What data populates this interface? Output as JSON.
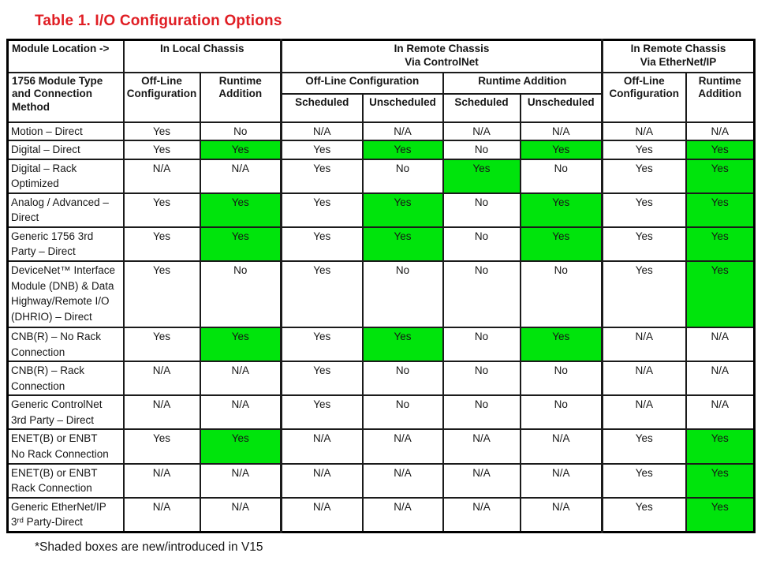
{
  "page": {
    "title": "Table 1. I/O Configuration Options",
    "footnote": "*Shaded boxes are new/introduced in V15"
  },
  "colors": {
    "title_red": "#e01e24",
    "highlight_green": "#00e40c",
    "border_black": "#1b1b1b"
  },
  "table": {
    "corner": {
      "top": "Module Location ->",
      "bottom": "1756 Module Type\nand Connection\nMethod"
    },
    "groups": {
      "local": {
        "label": "In Local Chassis",
        "col_offline": "Off-Line\nConfiguration",
        "col_runtime": "Runtime\nAddition"
      },
      "controlnet": {
        "label": "In Remote Chassis\nVia ControlNet",
        "sub_offline": "Off-Line Configuration",
        "sub_runtime": "Runtime  Addition",
        "sched": "Scheduled",
        "unsched": "Unscheduled"
      },
      "ethernet": {
        "label": "In Remote Chassis\nVia EtherNet/IP",
        "col_offline": "Off-Line\nConfiguration",
        "col_runtime": "Runtime\nAddition"
      }
    },
    "rows": [
      {
        "label": "Motion – Direct",
        "cells": [
          {
            "v": "Yes"
          },
          {
            "v": "No"
          },
          {
            "v": "N/A"
          },
          {
            "v": "N/A"
          },
          {
            "v": "N/A"
          },
          {
            "v": "N/A"
          },
          {
            "v": "N/A"
          },
          {
            "v": "N/A"
          }
        ]
      },
      {
        "label": "Digital – Direct",
        "cells": [
          {
            "v": "Yes"
          },
          {
            "v": "Yes",
            "hl": true
          },
          {
            "v": "Yes"
          },
          {
            "v": "Yes",
            "hl": true
          },
          {
            "v": "No"
          },
          {
            "v": "Yes",
            "hl": true
          },
          {
            "v": "Yes"
          },
          {
            "v": "Yes",
            "hl": true
          }
        ]
      },
      {
        "label": "Digital – Rack\nOptimized",
        "cells": [
          {
            "v": "N/A"
          },
          {
            "v": "N/A"
          },
          {
            "v": "Yes"
          },
          {
            "v": "No"
          },
          {
            "v": "Yes",
            "hl": true
          },
          {
            "v": "No"
          },
          {
            "v": "Yes"
          },
          {
            "v": "Yes",
            "hl": true
          }
        ]
      },
      {
        "label": "Analog / Advanced –\nDirect",
        "cells": [
          {
            "v": "Yes"
          },
          {
            "v": "Yes",
            "hl": true
          },
          {
            "v": "Yes"
          },
          {
            "v": "Yes",
            "hl": true
          },
          {
            "v": "No"
          },
          {
            "v": "Yes",
            "hl": true
          },
          {
            "v": "Yes"
          },
          {
            "v": "Yes",
            "hl": true
          }
        ]
      },
      {
        "label": "Generic 1756 3rd\nParty – Direct",
        "cells": [
          {
            "v": "Yes"
          },
          {
            "v": "Yes",
            "hl": true
          },
          {
            "v": "Yes"
          },
          {
            "v": "Yes",
            "hl": true
          },
          {
            "v": "No"
          },
          {
            "v": "Yes",
            "hl": true
          },
          {
            "v": "Yes"
          },
          {
            "v": "Yes",
            "hl": true
          }
        ]
      },
      {
        "label": "DeviceNet™ Interface\nModule (DNB) & Data\nHighway/Remote I/O\n(DHRIO) – Direct",
        "cells": [
          {
            "v": "Yes"
          },
          {
            "v": "No"
          },
          {
            "v": "Yes"
          },
          {
            "v": "No"
          },
          {
            "v": "No"
          },
          {
            "v": "No"
          },
          {
            "v": "Yes"
          },
          {
            "v": "Yes",
            "hl": true
          }
        ]
      },
      {
        "label": "CNB(R) – No Rack\nConnection",
        "cells": [
          {
            "v": "Yes"
          },
          {
            "v": "Yes",
            "hl": true
          },
          {
            "v": "Yes"
          },
          {
            "v": "Yes",
            "hl": true
          },
          {
            "v": "No"
          },
          {
            "v": "Yes",
            "hl": true
          },
          {
            "v": "N/A"
          },
          {
            "v": "N/A"
          }
        ]
      },
      {
        "label": "CNB(R) – Rack\nConnection",
        "cells": [
          {
            "v": "N/A"
          },
          {
            "v": "N/A"
          },
          {
            "v": "Yes"
          },
          {
            "v": "No"
          },
          {
            "v": "No"
          },
          {
            "v": "No"
          },
          {
            "v": "N/A"
          },
          {
            "v": "N/A"
          }
        ]
      },
      {
        "label": "Generic ControlNet\n3rd Party – Direct",
        "cells": [
          {
            "v": "N/A"
          },
          {
            "v": "N/A"
          },
          {
            "v": "Yes"
          },
          {
            "v": "No"
          },
          {
            "v": "No"
          },
          {
            "v": "No"
          },
          {
            "v": "N/A"
          },
          {
            "v": "N/A"
          }
        ]
      },
      {
        "label": "ENET(B) or ENBT\nNo Rack Connection",
        "cells": [
          {
            "v": "Yes"
          },
          {
            "v": "Yes",
            "hl": true
          },
          {
            "v": "N/A"
          },
          {
            "v": "N/A"
          },
          {
            "v": "N/A"
          },
          {
            "v": "N/A"
          },
          {
            "v": "Yes"
          },
          {
            "v": "Yes",
            "hl": true
          }
        ]
      },
      {
        "label": "ENET(B) or ENBT\nRack Connection",
        "cells": [
          {
            "v": "N/A"
          },
          {
            "v": "N/A"
          },
          {
            "v": "N/A"
          },
          {
            "v": "N/A"
          },
          {
            "v": "N/A"
          },
          {
            "v": "N/A"
          },
          {
            "v": "Yes"
          },
          {
            "v": "Yes",
            "hl": true
          }
        ]
      },
      {
        "label": "Generic EtherNet/IP\n3ʳᵈ Party-Direct",
        "cells": [
          {
            "v": "N/A"
          },
          {
            "v": "N/A"
          },
          {
            "v": "N/A"
          },
          {
            "v": "N/A"
          },
          {
            "v": "N/A"
          },
          {
            "v": "N/A"
          },
          {
            "v": "Yes"
          },
          {
            "v": "Yes",
            "hl": true
          }
        ]
      }
    ]
  }
}
